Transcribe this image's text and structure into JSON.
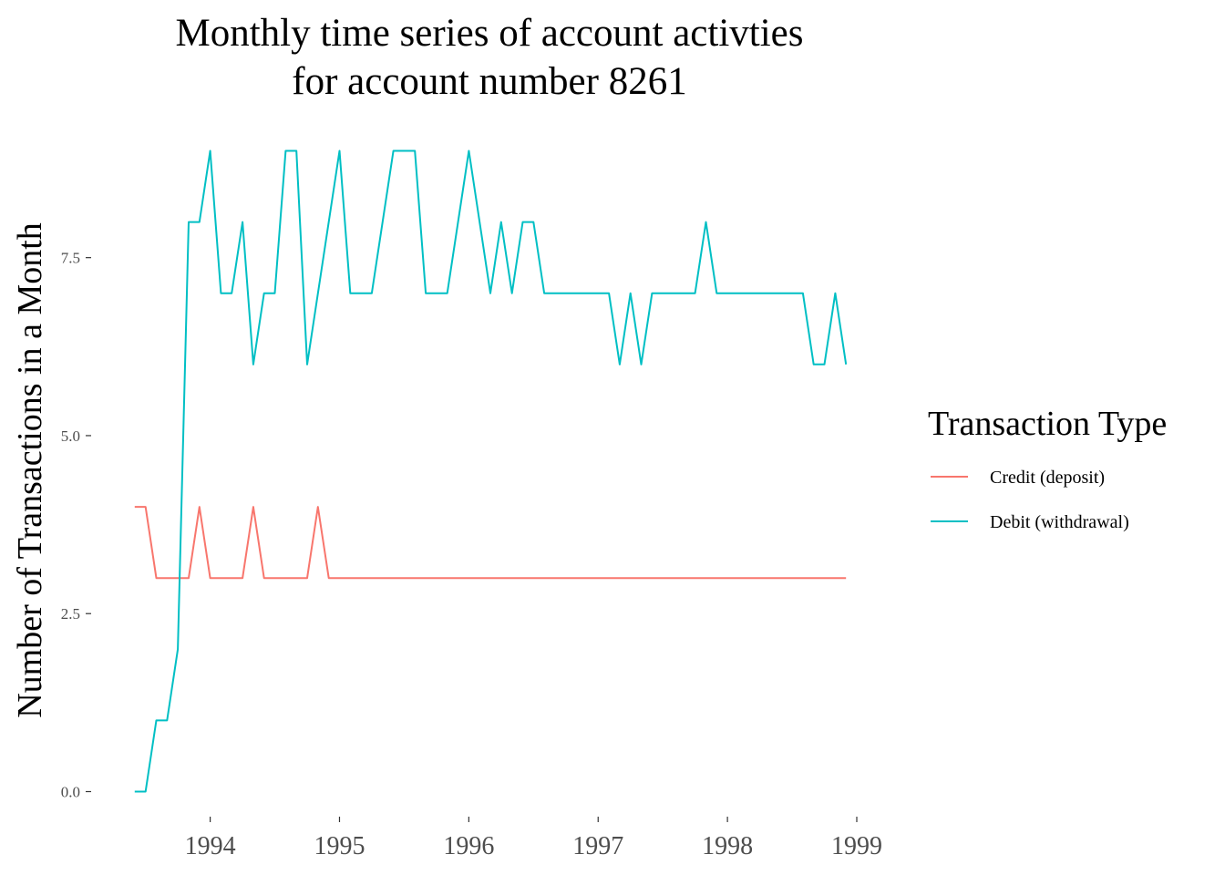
{
  "chart_data": {
    "type": "line",
    "title": [
      "Monthly time series of account activties",
      "for account number 8261"
    ],
    "xlabel": "",
    "ylabel": "Number of Transactions in a Month",
    "x_ticks": [
      "1994",
      "1995",
      "1996",
      "1997",
      "1998",
      "1999"
    ],
    "y_ticks": [
      "0.0",
      "2.5",
      "5.0",
      "7.5"
    ],
    "x_range": [
      "1993-06",
      "1998-12"
    ],
    "ylim": [
      0,
      9
    ],
    "grid": false,
    "legend": {
      "title": "Transaction Type",
      "placement": "right"
    },
    "series": [
      {
        "name": "Credit (deposit)",
        "color": "#F8766D",
        "points": [
          [
            "1993-06",
            4
          ],
          [
            "1993-07",
            4
          ],
          [
            "1993-08",
            3
          ],
          [
            "1993-09",
            3
          ],
          [
            "1993-10",
            3
          ],
          [
            "1993-11",
            3
          ],
          [
            "1993-12",
            4
          ],
          [
            "1994-01",
            3
          ],
          [
            "1994-02",
            3
          ],
          [
            "1994-03",
            3
          ],
          [
            "1994-04",
            3
          ],
          [
            "1994-05",
            4
          ],
          [
            "1994-06",
            3
          ],
          [
            "1994-07",
            3
          ],
          [
            "1994-08",
            3
          ],
          [
            "1994-09",
            3
          ],
          [
            "1994-10",
            3
          ],
          [
            "1994-11",
            4
          ],
          [
            "1994-12",
            3
          ],
          [
            "1995-01",
            3
          ],
          [
            "1998-12",
            3
          ]
        ]
      },
      {
        "name": "Debit (withdrawal)",
        "color": "#00BFC4",
        "points": [
          [
            "1993-06",
            0
          ],
          [
            "1993-07",
            0
          ],
          [
            "1993-08",
            1
          ],
          [
            "1993-09",
            1
          ],
          [
            "1993-10",
            2
          ],
          [
            "1993-11",
            8
          ],
          [
            "1993-12",
            8
          ],
          [
            "1994-01",
            9
          ],
          [
            "1994-02",
            7
          ],
          [
            "1994-03",
            7
          ],
          [
            "1994-04",
            8
          ],
          [
            "1994-05",
            6
          ],
          [
            "1994-06",
            7
          ],
          [
            "1994-07",
            7
          ],
          [
            "1994-08",
            9
          ],
          [
            "1994-09",
            9
          ],
          [
            "1994-10",
            6
          ],
          [
            "1995-01",
            9
          ],
          [
            "1995-02",
            7
          ],
          [
            "1995-04",
            7
          ],
          [
            "1995-06",
            9
          ],
          [
            "1995-08",
            9
          ],
          [
            "1995-09",
            7
          ],
          [
            "1995-11",
            7
          ],
          [
            "1996-01",
            9
          ],
          [
            "1996-03",
            7
          ],
          [
            "1996-04",
            8
          ],
          [
            "1996-05",
            7
          ],
          [
            "1996-06",
            8
          ],
          [
            "1996-07",
            8
          ],
          [
            "1996-08",
            7
          ],
          [
            "1997-02",
            7
          ],
          [
            "1997-03",
            6
          ],
          [
            "1997-04",
            7
          ],
          [
            "1997-05",
            6
          ],
          [
            "1997-06",
            7
          ],
          [
            "1997-10",
            7
          ],
          [
            "1997-11",
            8
          ],
          [
            "1997-12",
            7
          ],
          [
            "1998-08",
            7
          ],
          [
            "1998-09",
            6
          ],
          [
            "1998-10",
            6
          ],
          [
            "1998-11",
            7
          ],
          [
            "1998-12",
            6
          ]
        ]
      }
    ]
  }
}
